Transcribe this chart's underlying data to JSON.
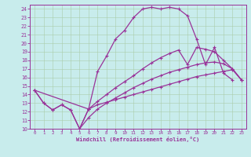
{
  "xlabel": "Windchill (Refroidissement éolien,°C)",
  "bg_color": "#c8ecec",
  "grid_color": "#aaccaa",
  "line_color": "#993399",
  "spine_color": "#993399",
  "xlim": [
    -0.5,
    23.5
  ],
  "ylim": [
    10,
    24.5
  ],
  "xticks": [
    0,
    1,
    2,
    3,
    4,
    5,
    6,
    7,
    8,
    9,
    10,
    11,
    12,
    13,
    14,
    15,
    16,
    17,
    18,
    19,
    20,
    21,
    22,
    23
  ],
  "yticks": [
    10,
    11,
    12,
    13,
    14,
    15,
    16,
    17,
    18,
    19,
    20,
    21,
    22,
    23,
    24
  ],
  "curve1_x": [
    0,
    1,
    2,
    3,
    4,
    5,
    6,
    7,
    8,
    9,
    10,
    11,
    12,
    13,
    14,
    15,
    16,
    17,
    18,
    19,
    20,
    21,
    22
  ],
  "curve1_y": [
    14.5,
    13.0,
    12.2,
    12.8,
    12.2,
    10.0,
    12.3,
    16.7,
    18.5,
    20.5,
    21.5,
    23.0,
    24.0,
    24.2,
    24.0,
    24.2,
    24.0,
    23.2,
    20.5,
    17.5,
    19.5,
    16.5,
    15.7
  ],
  "curve2_x": [
    0,
    1,
    2,
    3,
    4,
    5,
    6,
    7,
    8,
    9,
    10,
    11,
    12,
    13,
    14,
    15,
    16,
    17,
    18,
    19,
    20,
    21,
    22,
    23
  ],
  "curve2_y": [
    14.5,
    13.0,
    12.2,
    12.8,
    12.2,
    10.0,
    12.3,
    12.8,
    13.1,
    13.4,
    13.7,
    14.0,
    14.3,
    14.6,
    14.9,
    15.2,
    15.5,
    15.8,
    16.1,
    16.3,
    16.5,
    16.7,
    16.9,
    15.7
  ],
  "curve3_x": [
    0,
    6,
    7,
    8,
    9,
    10,
    11,
    12,
    13,
    14,
    15,
    16,
    17,
    18,
    19,
    20,
    21,
    22,
    23
  ],
  "curve3_y": [
    14.5,
    12.3,
    13.2,
    14.0,
    14.8,
    15.5,
    16.2,
    17.0,
    17.7,
    18.3,
    18.8,
    19.2,
    17.5,
    19.5,
    19.3,
    19.0,
    18.0,
    17.0,
    15.7
  ],
  "curve4_x": [
    5,
    6,
    7,
    8,
    9,
    10,
    11,
    12,
    13,
    14,
    15,
    16,
    17,
    18,
    19,
    20,
    21,
    22,
    23
  ],
  "curve4_y": [
    10.0,
    11.3,
    12.3,
    13.0,
    13.6,
    14.2,
    14.8,
    15.3,
    15.8,
    16.2,
    16.6,
    16.9,
    17.2,
    17.5,
    17.7,
    17.8,
    17.6,
    17.0,
    15.7
  ]
}
